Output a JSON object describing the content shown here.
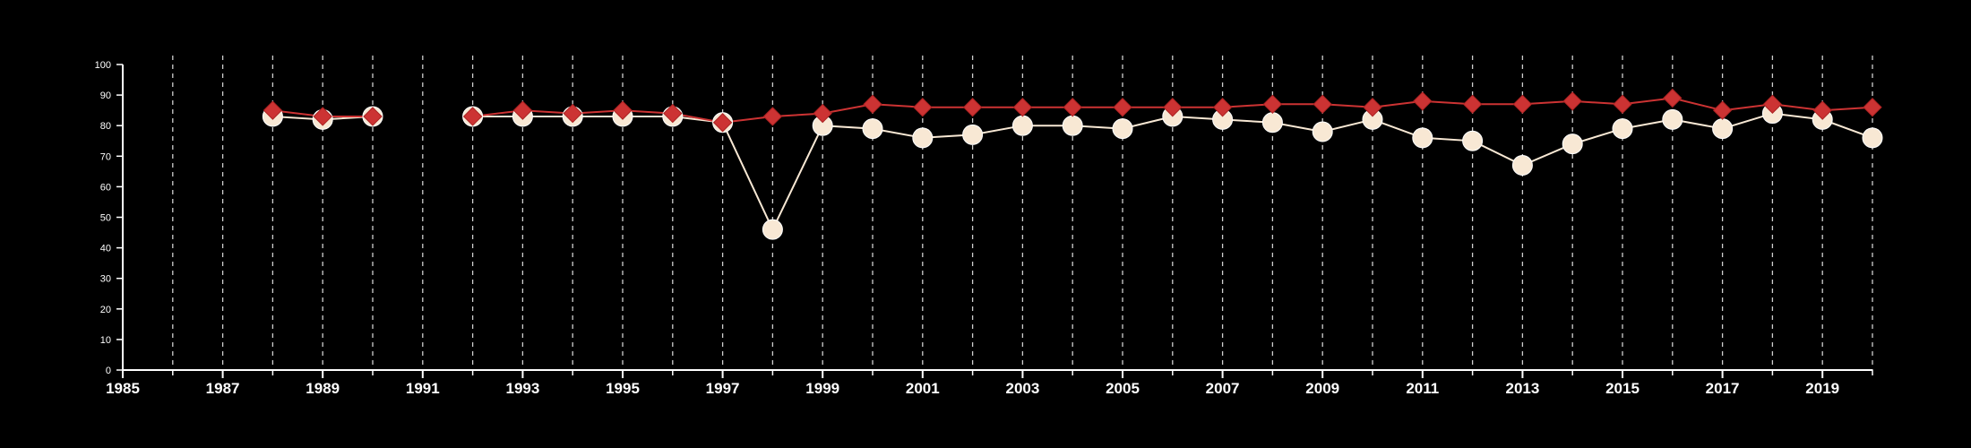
{
  "chart_data": {
    "type": "line",
    "title": "",
    "xlabel": "",
    "ylabel": "",
    "xlim": [
      1985,
      2020
    ],
    "ylim": [
      0,
      100
    ],
    "x_ticks": [
      1985,
      1987,
      1989,
      1991,
      1993,
      1995,
      1997,
      1999,
      2001,
      2003,
      2005,
      2007,
      2009,
      2011,
      2013,
      2015,
      2017,
      2019
    ],
    "x_tick_labels": [
      "1985",
      "1987",
      "1989",
      "1991",
      "1993",
      "1995",
      "1997",
      "1999",
      "2001",
      "2003",
      "2005",
      "2007",
      "2009",
      "2011",
      "2013",
      "2015",
      "2017",
      "2019"
    ],
    "y_ticks": [
      0,
      10,
      20,
      30,
      40,
      50,
      60,
      70,
      80,
      90,
      100
    ],
    "y_tick_labels": [
      "0",
      "10",
      "20",
      "30",
      "40",
      "50",
      "60",
      "70",
      "80",
      "90",
      "100"
    ],
    "grid": "vertical dashed lines at every year",
    "legend": "none",
    "series": [
      {
        "marker": "circle",
        "color": "#f8e8d4",
        "line_color": "#f8e8d4",
        "x": [
          1988,
          1989,
          1990,
          1992,
          1993,
          1994,
          1995,
          1996,
          1997,
          1998,
          1999,
          2000,
          2001,
          2002,
          2003,
          2004,
          2005,
          2006,
          2007,
          2008,
          2009,
          2010,
          2011,
          2012,
          2013,
          2014,
          2015,
          2016,
          2017,
          2018,
          2019,
          2020
        ],
        "values": [
          83,
          82,
          83,
          83,
          83,
          83,
          83,
          83,
          81,
          46,
          80,
          79,
          76,
          77,
          80,
          80,
          79,
          83,
          82,
          81,
          78,
          82,
          76,
          75,
          67,
          74,
          79,
          82,
          79,
          84,
          82,
          76
        ]
      },
      {
        "marker": "diamond",
        "color": "#cc3333",
        "line_color": "#cc3333",
        "x": [
          1988,
          1989,
          1990,
          1992,
          1993,
          1994,
          1995,
          1996,
          1997,
          1998,
          1999,
          2000,
          2001,
          2002,
          2003,
          2004,
          2005,
          2006,
          2007,
          2008,
          2009,
          2010,
          2011,
          2012,
          2013,
          2014,
          2015,
          2016,
          2017,
          2018,
          2019,
          2020
        ],
        "values": [
          85,
          83,
          83,
          83,
          85,
          84,
          85,
          84,
          81,
          83,
          84,
          87,
          86,
          86,
          86,
          86,
          86,
          86,
          86,
          87,
          87,
          86,
          88,
          87,
          87,
          88,
          87,
          89,
          85,
          87,
          85,
          86
        ]
      }
    ]
  }
}
